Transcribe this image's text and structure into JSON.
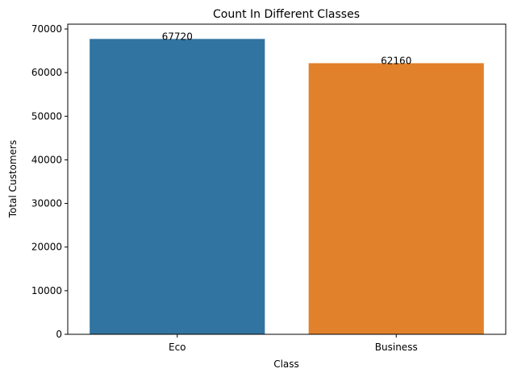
{
  "chart_data": {
    "type": "bar",
    "title": "Count In Different Classes",
    "xlabel": "Class",
    "ylabel": "Total Customers",
    "categories": [
      "Eco",
      "Business"
    ],
    "values": [
      67720,
      62160
    ],
    "data_labels": [
      "67720",
      "62160"
    ],
    "colors": [
      "#3274a1",
      "#e1812c"
    ],
    "ylim": [
      0,
      71106
    ],
    "yticks": [
      0,
      10000,
      20000,
      30000,
      40000,
      50000,
      60000,
      70000
    ],
    "grid": false,
    "legend": false
  }
}
